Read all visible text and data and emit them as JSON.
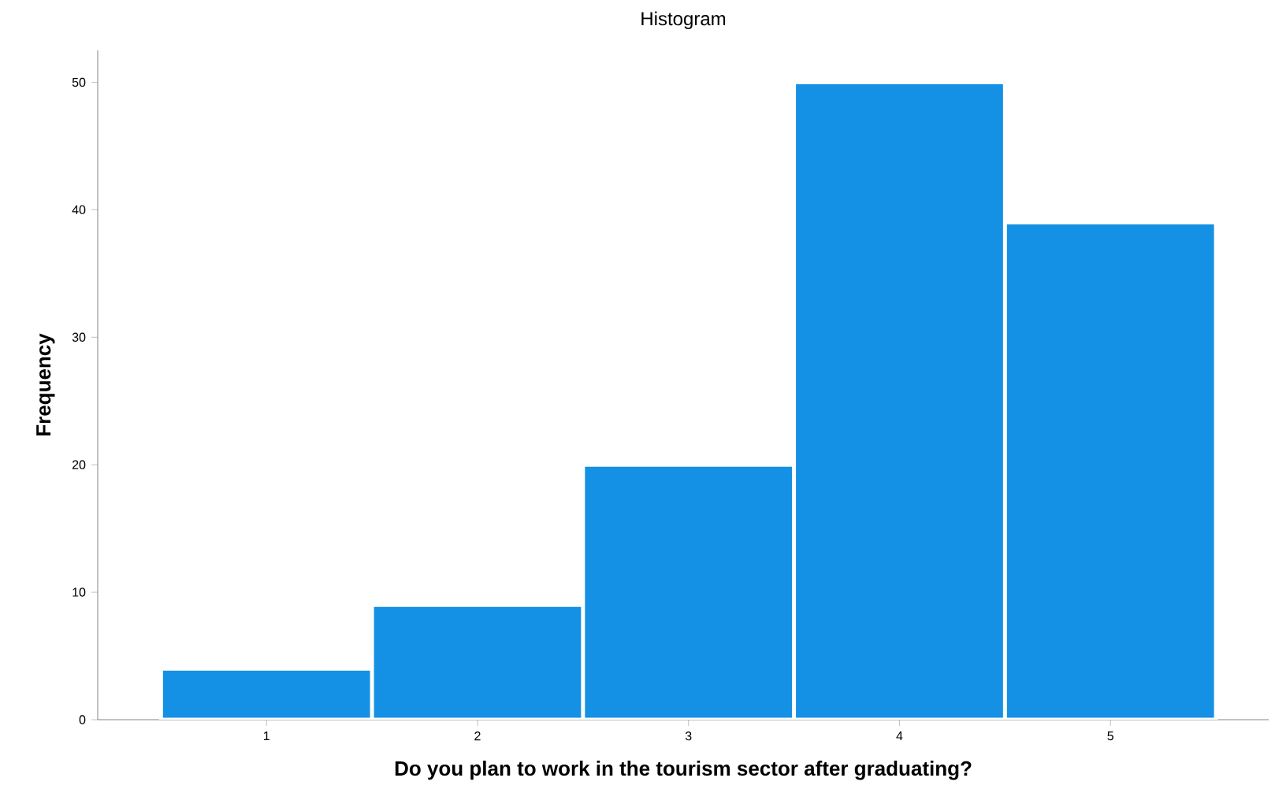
{
  "chart_data": {
    "type": "histogram",
    "title": "Histogram",
    "xlabel": "Do you plan to work in the tourism sector after graduating?",
    "ylabel": "Frequency",
    "bins": [
      0.5,
      1.5,
      2.5,
      3.5,
      4.5,
      5.5
    ],
    "values": [
      4,
      9,
      20,
      50,
      39
    ],
    "color": "#1490e4",
    "xlim": [
      0.2,
      5.75
    ],
    "ylim": [
      0,
      52.5
    ],
    "xticks": [
      1,
      2,
      3,
      4,
      5
    ],
    "yticks": [
      0,
      10,
      20,
      30,
      40,
      50
    ]
  }
}
